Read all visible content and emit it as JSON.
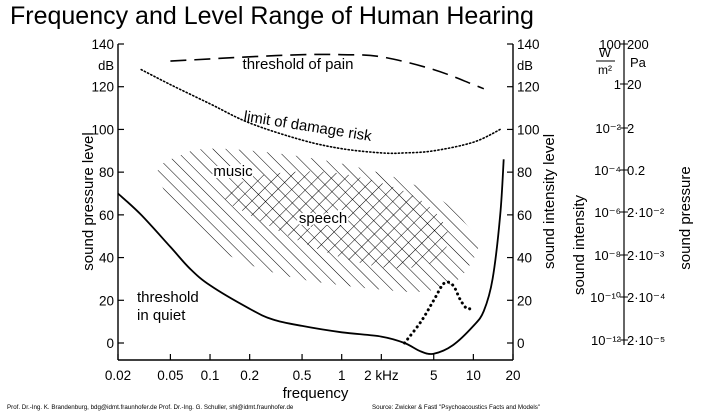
{
  "title": "Frequency and Level Range of Human Hearing",
  "chart_data": {
    "type": "line",
    "title": "Frequency and Level Range of Human Hearing",
    "xlabel": "frequency",
    "x_scale": "log",
    "xlim": [
      0.02,
      20
    ],
    "x_ticks": [
      0.02,
      0.05,
      0.1,
      0.2,
      0.5,
      1,
      2,
      5,
      10,
      20
    ],
    "x_tick_labels": [
      "0.02",
      "0.05",
      "0.1",
      "0.2",
      "0.5",
      "1",
      "2 kHz",
      "5",
      "10",
      "20"
    ],
    "ylabel": "sound pressure level",
    "ylabel_right": "sound intensity level",
    "ylim": [
      0,
      140
    ],
    "y_ticks": [
      0,
      20,
      40,
      60,
      80,
      100,
      120,
      140
    ],
    "y_tick_labels": [
      "0",
      "20",
      "40",
      "60",
      "80",
      "100",
      "120",
      "140"
    ],
    "y_unit": "dB",
    "grid": false,
    "series": [
      {
        "name": "threshold of pain",
        "style": "dashed",
        "x": [
          0.05,
          0.1,
          0.2,
          0.5,
          1,
          2,
          5,
          10,
          12
        ],
        "y": [
          132,
          133,
          134,
          135,
          135,
          134,
          128,
          121,
          119
        ]
      },
      {
        "name": "limit of damage risk",
        "style": "dotted",
        "x": [
          0.03,
          0.05,
          0.1,
          0.2,
          0.5,
          1,
          2,
          3,
          5,
          10,
          16
        ],
        "y": [
          128,
          121,
          112,
          103,
          95,
          91,
          89,
          89,
          90,
          94,
          100
        ]
      },
      {
        "name": "threshold in quiet",
        "style": "solid",
        "x": [
          0.02,
          0.03,
          0.05,
          0.07,
          0.1,
          0.2,
          0.3,
          0.5,
          1,
          2,
          3,
          4,
          5,
          7,
          10,
          12,
          14,
          16,
          17
        ],
        "y": [
          70,
          60,
          45,
          35,
          27,
          16,
          11,
          8,
          5,
          3,
          0,
          -4,
          -5,
          -1,
          8,
          15,
          30,
          60,
          86
        ]
      },
      {
        "name": "music",
        "style": "hatched",
        "x": [
          0.04,
          0.06,
          0.1,
          0.3,
          1,
          3,
          6,
          9,
          11,
          9.5,
          7,
          4,
          2,
          1,
          0.4,
          0.15,
          0.07,
          0.04
        ],
        "y": [
          79,
          88,
          91,
          89,
          84,
          76,
          66,
          55,
          47,
          37,
          28,
          24,
          25,
          27,
          31,
          40,
          55,
          79
        ]
      },
      {
        "name": "speech",
        "style": "cross-hatched",
        "x": [
          0.13,
          0.2,
          0.4,
          0.8,
          1.5,
          3,
          5,
          6.5,
          5.5,
          4,
          2.5,
          1.5,
          0.8,
          0.4,
          0.2,
          0.13
        ],
        "y": [
          68,
          77,
          80,
          80,
          77,
          71,
          62,
          50,
          40,
          36,
          35,
          37,
          42,
          50,
          60,
          68
        ]
      },
      {
        "name": "",
        "style": "dotted",
        "x": [
          3,
          4,
          5,
          6,
          7,
          8,
          9,
          10
        ],
        "y": [
          0,
          10,
          20,
          28,
          27,
          20,
          16,
          17
        ]
      }
    ],
    "right_axis_intensity": {
      "unit_label": "W/m²",
      "values": [
        "100",
        "1",
        "10⁻²",
        "10⁻⁴",
        "10⁻⁶",
        "10⁻⁸",
        "10⁻¹⁰",
        "10⁻¹²"
      ],
      "axis_label": "sound intensity"
    },
    "right_axis_pressure": {
      "unit_label": "Pa",
      "values": [
        "200",
        "20",
        "2",
        "0.2",
        "2·10⁻²",
        "2·10⁻³",
        "2·10⁻⁴",
        "2·10⁻⁵"
      ],
      "axis_label": "sound pressure"
    }
  },
  "footer": {
    "authors": "Prof. Dr.-Ing. K. Brandenburg, bdg@idmt.fraunhofer.de Prof. Dr.-Ing. G. Schuller, shl@idmt.fraunhofer.de",
    "source": "Source: Zwicker & Fastl \"Psychoacoustics Facts and Models\""
  }
}
